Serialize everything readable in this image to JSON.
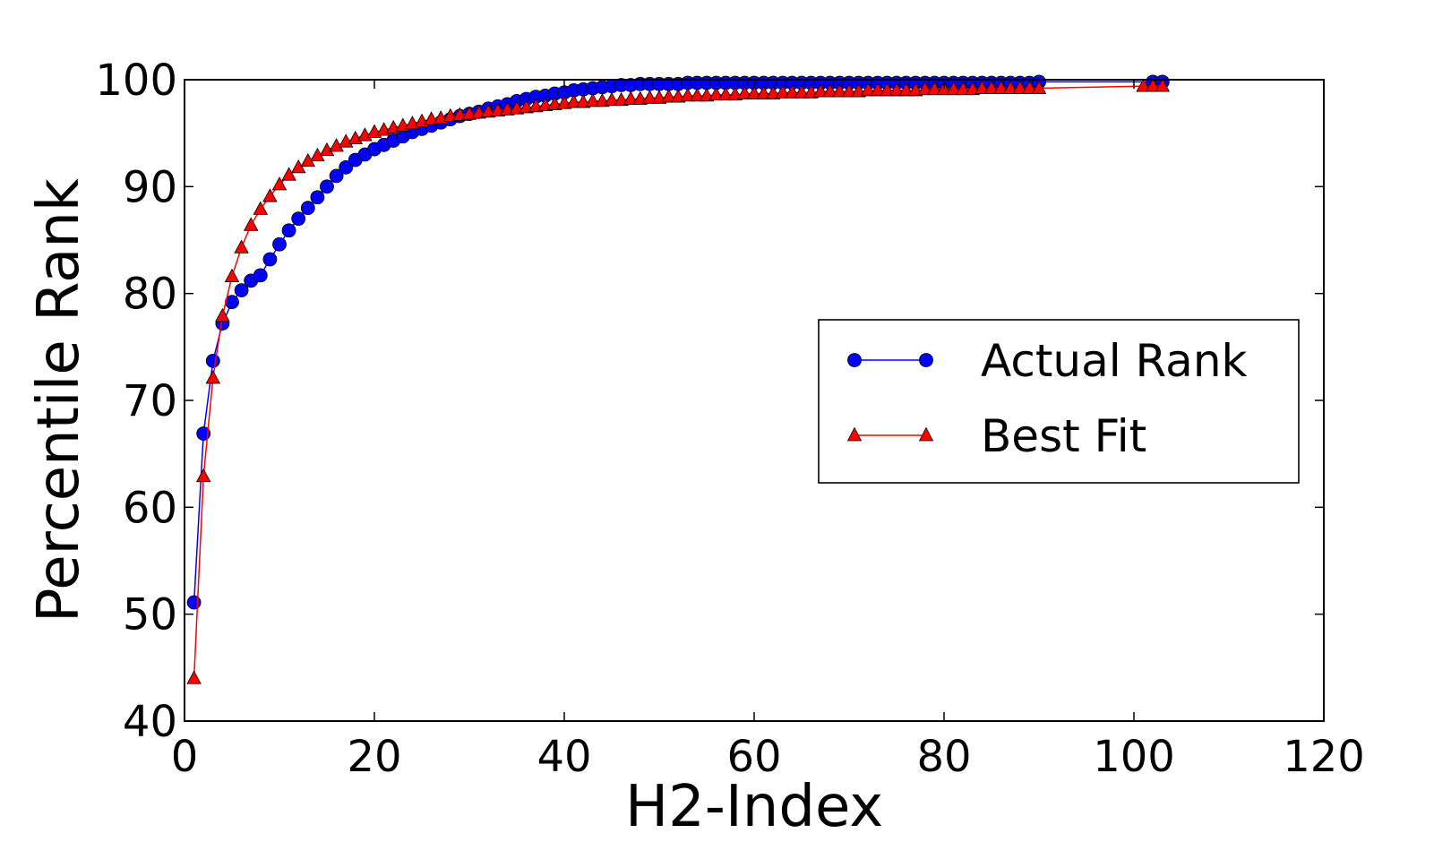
{
  "chart_data": {
    "type": "line",
    "title": "",
    "xlabel": "H2-Index",
    "ylabel": "Percentile Rank",
    "xlim": [
      0,
      120
    ],
    "ylim": [
      40,
      100
    ],
    "xticks": [
      0,
      20,
      40,
      60,
      80,
      100,
      120
    ],
    "yticks": [
      40,
      50,
      60,
      70,
      80,
      90,
      100
    ],
    "xtick_labels": [
      "0",
      "20",
      "40",
      "60",
      "80",
      "100",
      "120"
    ],
    "ytick_labels": [
      "40",
      "50",
      "60",
      "70",
      "80",
      "90",
      "100"
    ],
    "grid": false,
    "legend": {
      "position": "center-right",
      "entries": [
        "Actual Rank",
        "Best Fit"
      ]
    },
    "series": [
      {
        "name": "Actual Rank",
        "color": "#0000ff",
        "marker": "circle",
        "x": [
          1,
          2,
          3,
          4,
          5,
          6,
          7,
          8,
          9,
          10,
          11,
          12,
          13,
          14,
          15,
          16,
          17,
          18,
          19,
          20,
          21,
          22,
          23,
          24,
          25,
          26,
          27,
          28,
          29,
          30,
          31,
          32,
          33,
          34,
          35,
          36,
          37,
          38,
          39,
          40,
          41,
          42,
          43,
          44,
          45,
          46,
          47,
          48,
          49,
          50,
          51,
          52,
          53,
          54,
          55,
          56,
          57,
          58,
          59,
          60,
          61,
          62,
          63,
          64,
          65,
          66,
          67,
          68,
          69,
          70,
          71,
          72,
          73,
          74,
          75,
          76,
          77,
          78,
          79,
          80,
          81,
          82,
          83,
          84,
          85,
          86,
          87,
          88,
          89,
          90,
          102,
          103
        ],
        "y": [
          51.1,
          66.9,
          73.7,
          77.2,
          79.2,
          80.3,
          81.2,
          81.7,
          83.2,
          84.6,
          85.9,
          87.0,
          88.0,
          89.0,
          90.0,
          91.0,
          91.8,
          92.5,
          93.0,
          93.5,
          93.9,
          94.3,
          94.7,
          95.1,
          95.4,
          95.7,
          96.0,
          96.3,
          96.6,
          96.8,
          97.0,
          97.3,
          97.5,
          97.7,
          98.0,
          98.2,
          98.4,
          98.5,
          98.7,
          98.8,
          99.0,
          99.1,
          99.2,
          99.3,
          99.4,
          99.5,
          99.5,
          99.6,
          99.6,
          99.6,
          99.6,
          99.6,
          99.7,
          99.7,
          99.7,
          99.7,
          99.7,
          99.7,
          99.7,
          99.7,
          99.7,
          99.7,
          99.7,
          99.7,
          99.7,
          99.7,
          99.7,
          99.7,
          99.7,
          99.7,
          99.7,
          99.7,
          99.7,
          99.7,
          99.7,
          99.7,
          99.7,
          99.7,
          99.7,
          99.7,
          99.7,
          99.7,
          99.7,
          99.7,
          99.7,
          99.7,
          99.7,
          99.7,
          99.7,
          99.8,
          99.8,
          99.8
        ]
      },
      {
        "name": "Best Fit",
        "color": "#ff0000",
        "marker": "triangle",
        "x": [
          1,
          2,
          3,
          4,
          5,
          6,
          7,
          8,
          9,
          10,
          11,
          12,
          13,
          14,
          15,
          16,
          17,
          18,
          19,
          20,
          21,
          22,
          23,
          24,
          25,
          26,
          27,
          28,
          29,
          30,
          31,
          32,
          33,
          34,
          35,
          36,
          37,
          38,
          39,
          40,
          41,
          42,
          43,
          44,
          45,
          46,
          47,
          48,
          49,
          50,
          51,
          52,
          53,
          54,
          55,
          56,
          57,
          58,
          59,
          60,
          61,
          62,
          63,
          64,
          65,
          66,
          67,
          68,
          69,
          70,
          71,
          72,
          73,
          74,
          75,
          76,
          77,
          78,
          79,
          80,
          81,
          82,
          83,
          84,
          85,
          86,
          87,
          88,
          89,
          90,
          101,
          102,
          103
        ],
        "y": [
          44.0,
          62.9,
          72.1,
          77.9,
          81.6,
          84.3,
          86.4,
          87.9,
          89.1,
          90.2,
          91.1,
          91.8,
          92.4,
          92.9,
          93.4,
          93.8,
          94.2,
          94.5,
          94.8,
          95.1,
          95.3,
          95.5,
          95.7,
          95.9,
          96.1,
          96.3,
          96.4,
          96.6,
          96.7,
          96.8,
          96.9,
          97.0,
          97.1,
          97.2,
          97.3,
          97.4,
          97.5,
          97.6,
          97.7,
          97.8,
          97.9,
          97.9,
          98.0,
          98.0,
          98.1,
          98.1,
          98.2,
          98.2,
          98.3,
          98.3,
          98.4,
          98.4,
          98.5,
          98.5,
          98.5,
          98.6,
          98.6,
          98.6,
          98.7,
          98.7,
          98.7,
          98.7,
          98.8,
          98.8,
          98.8,
          98.8,
          98.9,
          98.9,
          98.9,
          98.9,
          98.9,
          99.0,
          99.0,
          99.0,
          99.0,
          99.0,
          99.0,
          99.1,
          99.1,
          99.1,
          99.1,
          99.1,
          99.1,
          99.2,
          99.2,
          99.2,
          99.2,
          99.2,
          99.2,
          99.2,
          99.4,
          99.4,
          99.4
        ]
      }
    ]
  }
}
